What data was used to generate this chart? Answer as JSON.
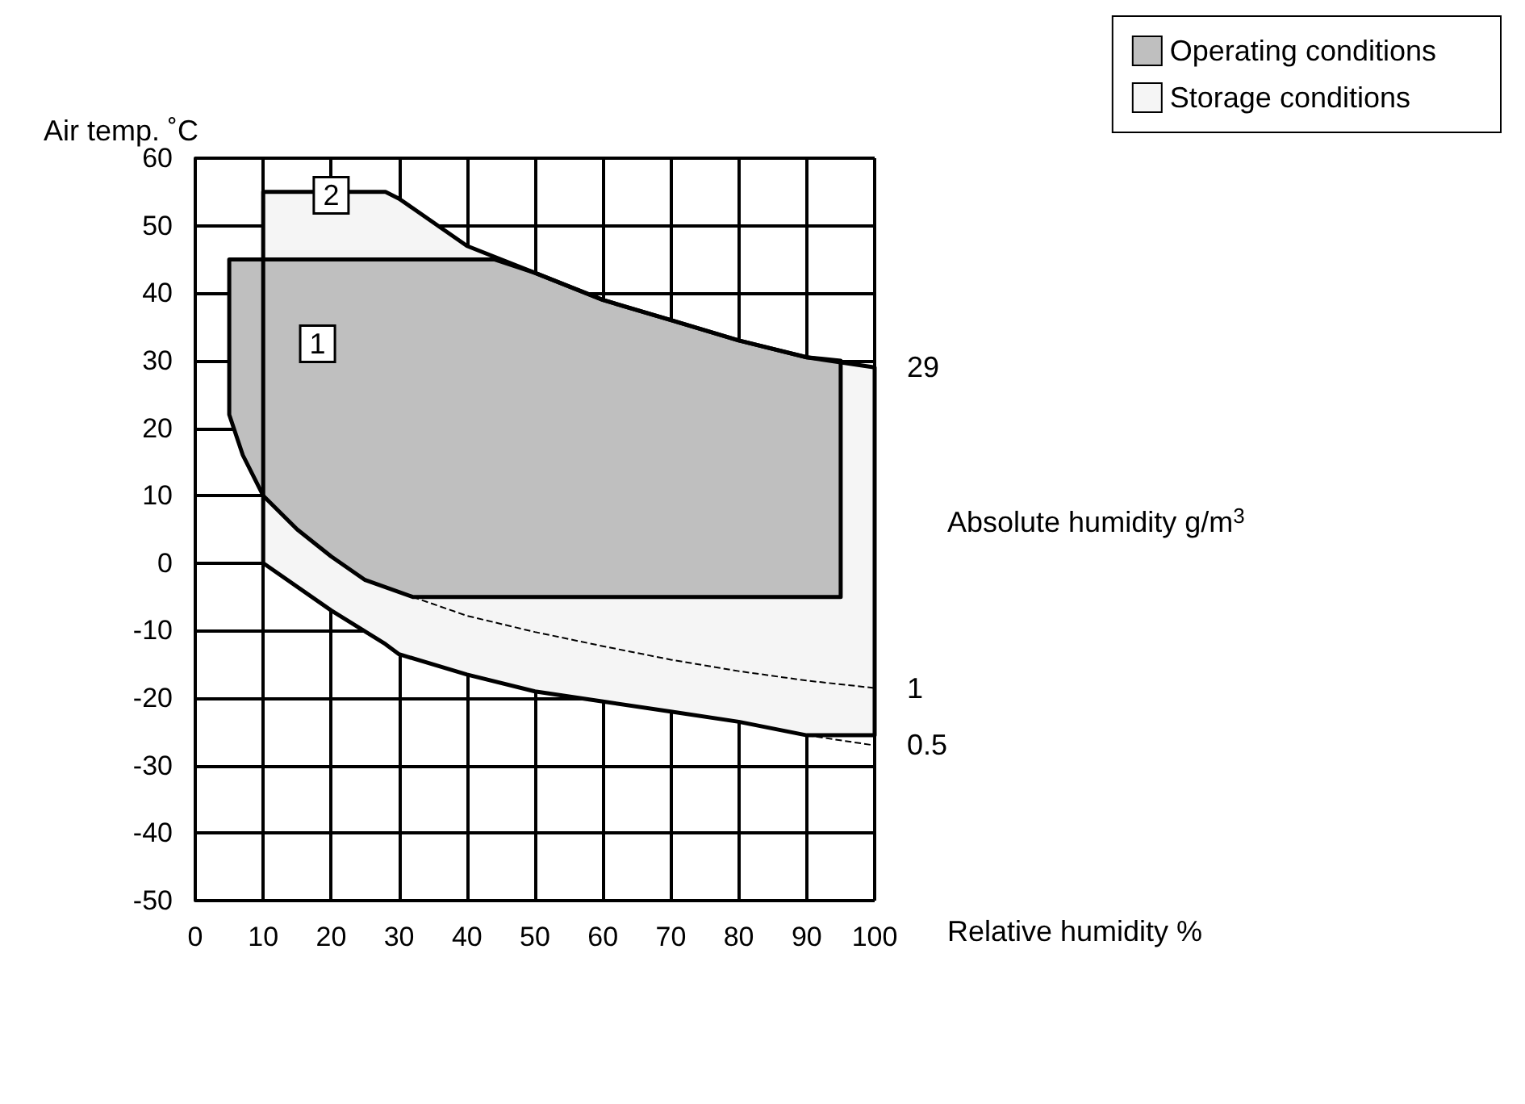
{
  "chart_data": {
    "type": "area",
    "xlabel": "Relative humidity %",
    "ylabel": "Air temp. ˚C",
    "xlim": [
      0,
      100
    ],
    "ylim": [
      -50,
      60
    ],
    "xticks": [
      0,
      10,
      20,
      30,
      40,
      50,
      60,
      70,
      80,
      90,
      100
    ],
    "yticks": [
      -50,
      -40,
      -30,
      -20,
      -10,
      0,
      10,
      20,
      30,
      40,
      50,
      60
    ],
    "grid": true,
    "legend": "top right",
    "series": [
      {
        "name": "Operating conditions",
        "color": "#bfbfbf",
        "x": [
          5,
          44,
          50,
          60,
          70,
          80,
          90,
          95,
          95,
          32,
          25,
          20,
          15,
          10,
          7,
          5
        ],
        "values": [
          45,
          45,
          43,
          39,
          36,
          33,
          30.5,
          30,
          -5,
          -5,
          -2.5,
          1,
          5,
          10,
          16,
          22
        ]
      },
      {
        "name": "Storage conditions",
        "color": "#f5f5f5",
        "x": [
          10,
          28,
          30,
          40,
          50,
          60,
          70,
          80,
          90,
          100,
          100,
          90,
          80,
          70,
          60,
          50,
          40,
          30,
          28,
          20,
          10
        ],
        "values": [
          55,
          55,
          54,
          47,
          43,
          39,
          36,
          33,
          30.5,
          29,
          -25.5,
          -25.5,
          -23.5,
          -22,
          -20.5,
          -19,
          -16.5,
          -13.5,
          -12,
          -7,
          0
        ]
      },
      {
        "type": "line",
        "line_style": "dashed",
        "color": "#000000",
        "x": [
          32,
          40,
          50,
          60,
          70,
          80,
          90,
          100
        ],
        "values": [
          -5,
          -7.8,
          -10.2,
          -12.3,
          -14.3,
          -16,
          -17.4,
          -18.5
        ]
      },
      {
        "type": "line",
        "line_style": "dashed",
        "color": "#000000",
        "x": [
          90,
          100
        ],
        "values": [
          -25.5,
          -27
        ]
      }
    ],
    "annotations": [
      "2",
      "1",
      "29",
      "1",
      "0.5",
      "Absolute humidity g/m$^{3}$"
    ]
  }
}
